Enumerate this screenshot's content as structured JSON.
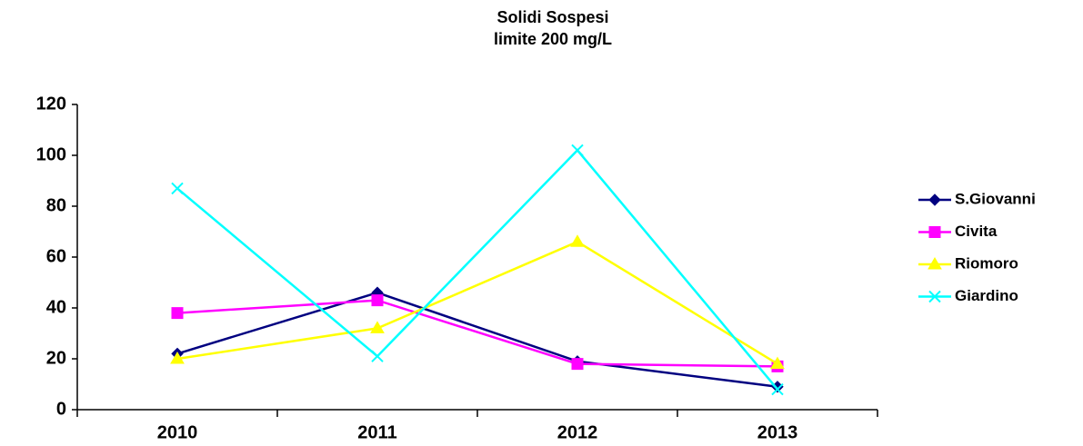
{
  "chart_data": {
    "type": "line",
    "title": "Solidi Sospesi",
    "subtitle": "limite 200 mg/L",
    "categories": [
      "2010",
      "2011",
      "2012",
      "2013"
    ],
    "series": [
      {
        "name": "S.Giovanni",
        "color": "#000080",
        "marker": "diamond",
        "values": [
          22,
          46,
          19,
          9
        ]
      },
      {
        "name": "Civita",
        "color": "#ff00ff",
        "marker": "square",
        "values": [
          38,
          43,
          18,
          17
        ]
      },
      {
        "name": "Riomoro",
        "color": "#ffff00",
        "marker": "triangle",
        "values": [
          20,
          32,
          66,
          18
        ]
      },
      {
        "name": "Giardino",
        "color": "#00ffff",
        "marker": "x",
        "values": [
          87,
          21,
          102,
          8
        ]
      }
    ],
    "ylim": [
      0,
      120
    ],
    "yticks": [
      0,
      20,
      40,
      60,
      80,
      100,
      120
    ],
    "grid": false,
    "legend": "right"
  }
}
